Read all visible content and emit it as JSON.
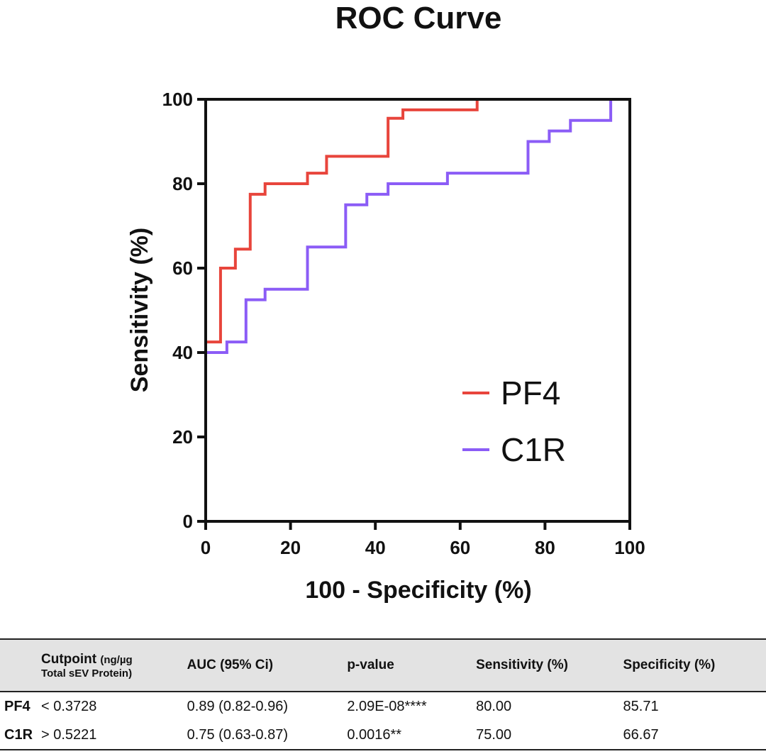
{
  "chart_data": {
    "type": "line",
    "title": "ROC Curve",
    "xlabel": "100 - Specificity (%)",
    "ylabel": "Sensitivity (%)",
    "xlim": [
      0,
      100
    ],
    "ylim": [
      0,
      100
    ],
    "x_ticks": [
      "0",
      "20",
      "40",
      "60",
      "80",
      "100"
    ],
    "y_ticks": [
      "0",
      "20",
      "40",
      "60",
      "80",
      "100"
    ],
    "grid": false,
    "legend_position": "bottom-right",
    "series": [
      {
        "name": "PF4",
        "color": "#e8453c",
        "x": [
          0,
          0,
          3.5,
          3.5,
          7,
          7,
          10.5,
          10.5,
          14,
          14,
          24,
          24,
          28.5,
          28.5,
          43,
          43,
          46.5,
          46.5,
          64,
          64,
          100
        ],
        "y": [
          0,
          42.5,
          42.5,
          60,
          60,
          64.5,
          64.5,
          77.5,
          77.5,
          80,
          80,
          82.5,
          82.5,
          86.5,
          86.5,
          95.5,
          95.5,
          97.5,
          97.5,
          100,
          100
        ]
      },
      {
        "name": "C1R",
        "color": "#8b5cf6",
        "x": [
          0,
          5,
          5,
          9.5,
          9.5,
          14,
          14,
          24,
          24,
          33,
          33,
          38,
          38,
          43,
          43,
          57,
          57,
          76,
          76,
          81,
          81,
          86,
          86,
          95.5,
          95.5,
          100
        ],
        "y": [
          40,
          40,
          42.5,
          42.5,
          52.5,
          52.5,
          55,
          55,
          65,
          65,
          75,
          75,
          77.5,
          77.5,
          80,
          80,
          82.5,
          82.5,
          90,
          90,
          92.5,
          92.5,
          95,
          95,
          100,
          100
        ]
      }
    ]
  },
  "table": {
    "headers": {
      "cutpoint": "Cutpoint",
      "cutpoint_unit_a": "(ng/µg",
      "cutpoint_unit_b": "Total sEV Protein)",
      "auc": "AUC (95% Ci)",
      "pvalue": "p-value",
      "sensitivity": "Sensitivity (%)",
      "specificity": "Specificity (%)"
    },
    "rows": [
      {
        "name": "PF4",
        "cutpoint": "< 0.3728",
        "auc": "0.89 (0.82-0.96)",
        "pvalue": "2.09E-08****",
        "sensitivity": "80.00",
        "specificity": "85.71"
      },
      {
        "name": "C1R",
        "cutpoint": "> 0.5221",
        "auc": "0.75 (0.63-0.87)",
        "pvalue": "0.0016**",
        "sensitivity": "75.00",
        "specificity": "66.67"
      }
    ]
  }
}
